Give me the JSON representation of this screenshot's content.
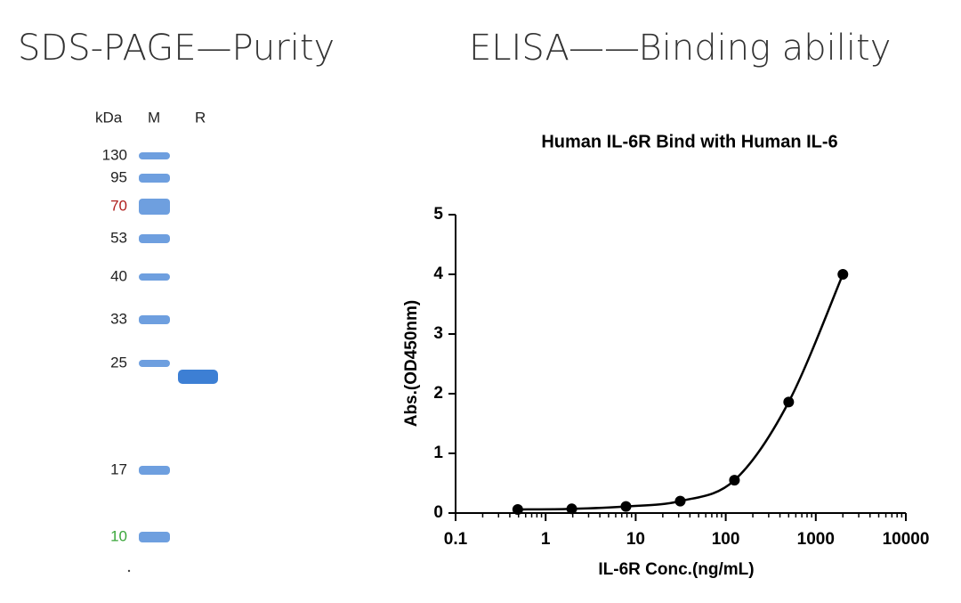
{
  "gel": {
    "title": "SDS-PAGE—Purity",
    "header": [
      "kDa",
      "M",
      "R"
    ],
    "markers": [
      {
        "label": "130",
        "color": "#222222"
      },
      {
        "label": "95",
        "color": "#222222"
      },
      {
        "label": "70",
        "color": "#b0201e"
      },
      {
        "label": "53",
        "color": "#222222"
      },
      {
        "label": "40",
        "color": "#222222"
      },
      {
        "label": "33",
        "color": "#222222"
      },
      {
        "label": "25",
        "color": "#222222"
      },
      {
        "label": "17",
        "color": "#222222"
      },
      {
        "label": "10",
        "color": "#3aa63a"
      }
    ],
    "band_color": "#3d7fd4"
  },
  "elisa_title": "ELISA——Binding ability",
  "chart_data": {
    "type": "scatter",
    "title": "Human IL-6R Bind with Human IL-6",
    "x_label": "IL-6R Conc.(ng/mL)",
    "y_label": "Abs.(OD450nm)",
    "x": [
      0.49,
      1.95,
      7.8,
      31.25,
      125,
      500,
      2000
    ],
    "values": [
      0.06,
      0.07,
      0.11,
      0.2,
      0.55,
      1.86,
      4.0
    ],
    "color": "#000000",
    "x_log": true,
    "fit_curve": true,
    "xlim": [
      0.1,
      10000
    ],
    "xticks": [
      0.1,
      1,
      10,
      100,
      1000,
      10000
    ],
    "ylim": [
      0,
      5
    ],
    "yticks": [
      0,
      1,
      2,
      3,
      4,
      5
    ]
  }
}
